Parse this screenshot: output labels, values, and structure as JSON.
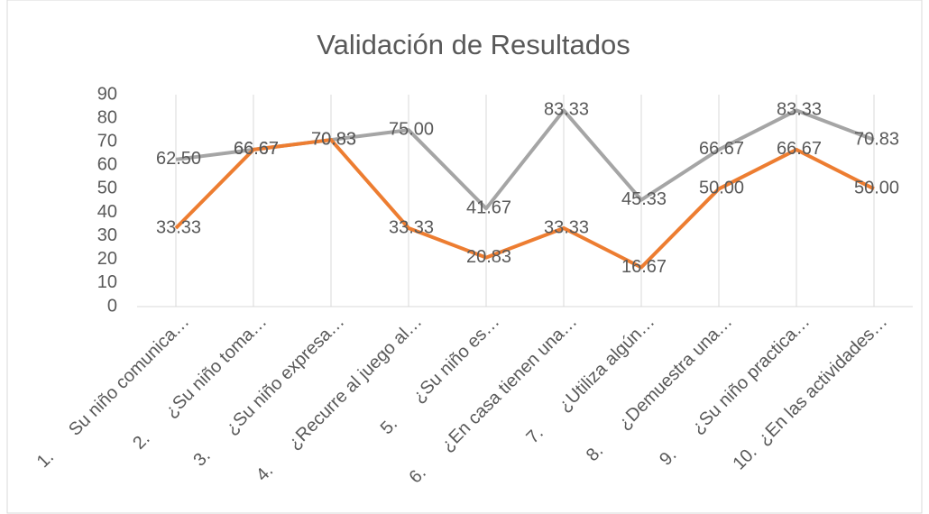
{
  "chart_data": {
    "type": "line",
    "title": "Validación de Resultados",
    "categories": [
      "1.      Su niño comunica…",
      "2.      ¿Su niño toma…",
      "3.      ¿Su niño expresa…",
      "4.      ¿Recurre al juego al…",
      "5.      ¿Su niño es…",
      "6.      ¿En casa tienen una…",
      "7.      ¿Utiliza algún…",
      "8.      ¿Demuestra una…",
      "9.      ¿Su niño practica…",
      "10.  ¿En las actividades…"
    ],
    "series": [
      {
        "color": "#a5a5a5",
        "values": [
          62.5,
          66.67,
          70.83,
          75,
          41.67,
          83.33,
          45.33,
          66.67,
          83.33,
          70.83
        ],
        "value_labels": [
          "62.50",
          "66.67",
          "70.83",
          "75.00",
          "41.67",
          "83.33",
          "45.33",
          "66.67",
          "83.33",
          "70.83"
        ]
      },
      {
        "color": "#ed7d31",
        "values": [
          33.33,
          66.67,
          70.83,
          33.33,
          20.83,
          33.33,
          16.67,
          50,
          66.67,
          50
        ],
        "value_labels": [
          "33.33",
          "66.67",
          "70.83",
          "33.33",
          "20.83",
          "33.33",
          "16.67",
          "50.00",
          "66.67",
          "50.00"
        ]
      }
    ],
    "ylim": [
      0,
      90
    ],
    "yticks": [
      0,
      10,
      20,
      30,
      40,
      50,
      60,
      70,
      80,
      90
    ],
    "grid": "x"
  }
}
